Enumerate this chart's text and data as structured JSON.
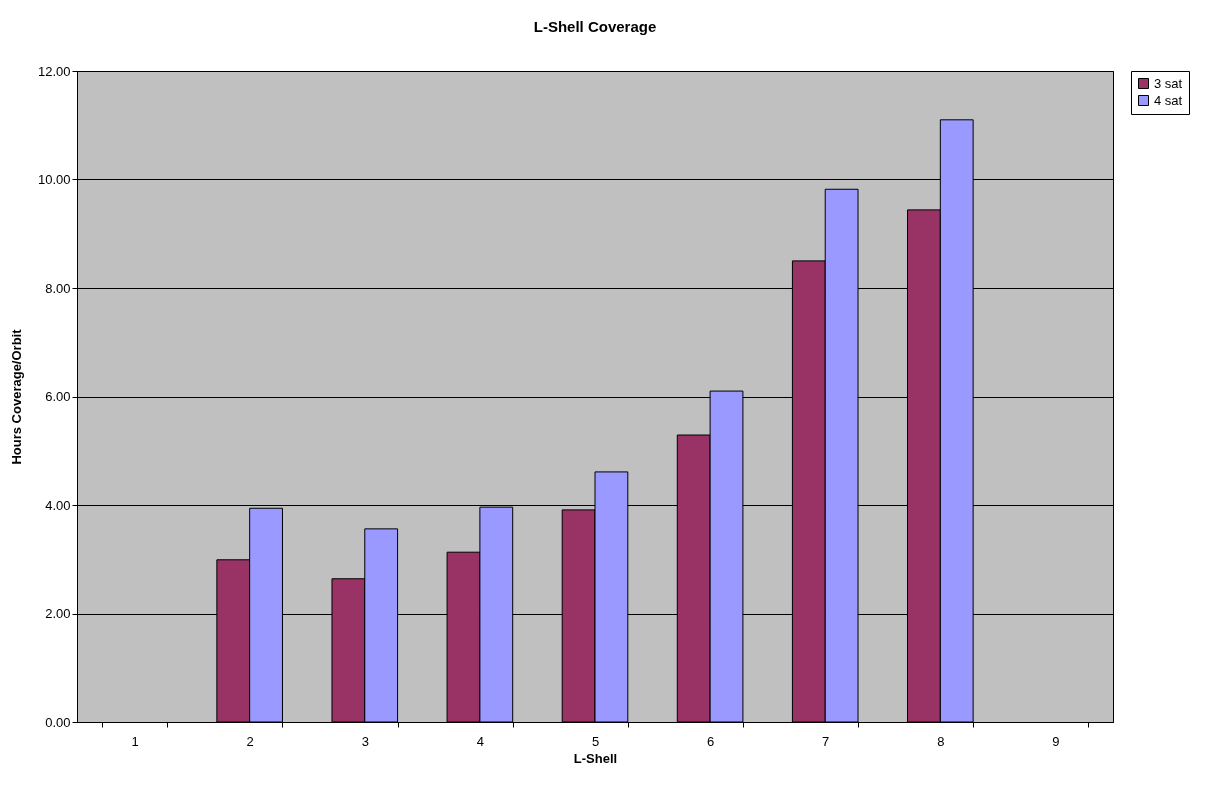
{
  "chart_data": {
    "type": "bar",
    "title": "L-Shell Coverage",
    "xlabel": "L-Shell",
    "ylabel": "Hours Coverage/Orbit",
    "categories": [
      "1",
      "2",
      "3",
      "4",
      "5",
      "6",
      "7",
      "8",
      "9"
    ],
    "series": [
      {
        "name": "3 sat",
        "color": "#993366",
        "values": [
          null,
          2.99,
          2.64,
          3.13,
          3.91,
          5.29,
          8.5,
          9.44,
          null
        ]
      },
      {
        "name": "4 sat",
        "color": "#9999ff",
        "values": [
          null,
          3.94,
          3.56,
          3.96,
          4.61,
          6.1,
          9.82,
          11.1,
          null
        ]
      }
    ],
    "ylim": [
      0,
      12
    ],
    "yticks": [
      {
        "value": 0,
        "label": "0.00"
      },
      {
        "value": 2,
        "label": "2.00"
      },
      {
        "value": 4,
        "label": "4.00"
      },
      {
        "value": 6,
        "label": "6.00"
      },
      {
        "value": 8,
        "label": "8.00"
      },
      {
        "value": 10,
        "label": "10.00"
      },
      {
        "value": 12,
        "label": "12.00"
      }
    ],
    "grid": "y",
    "legend": "right"
  }
}
